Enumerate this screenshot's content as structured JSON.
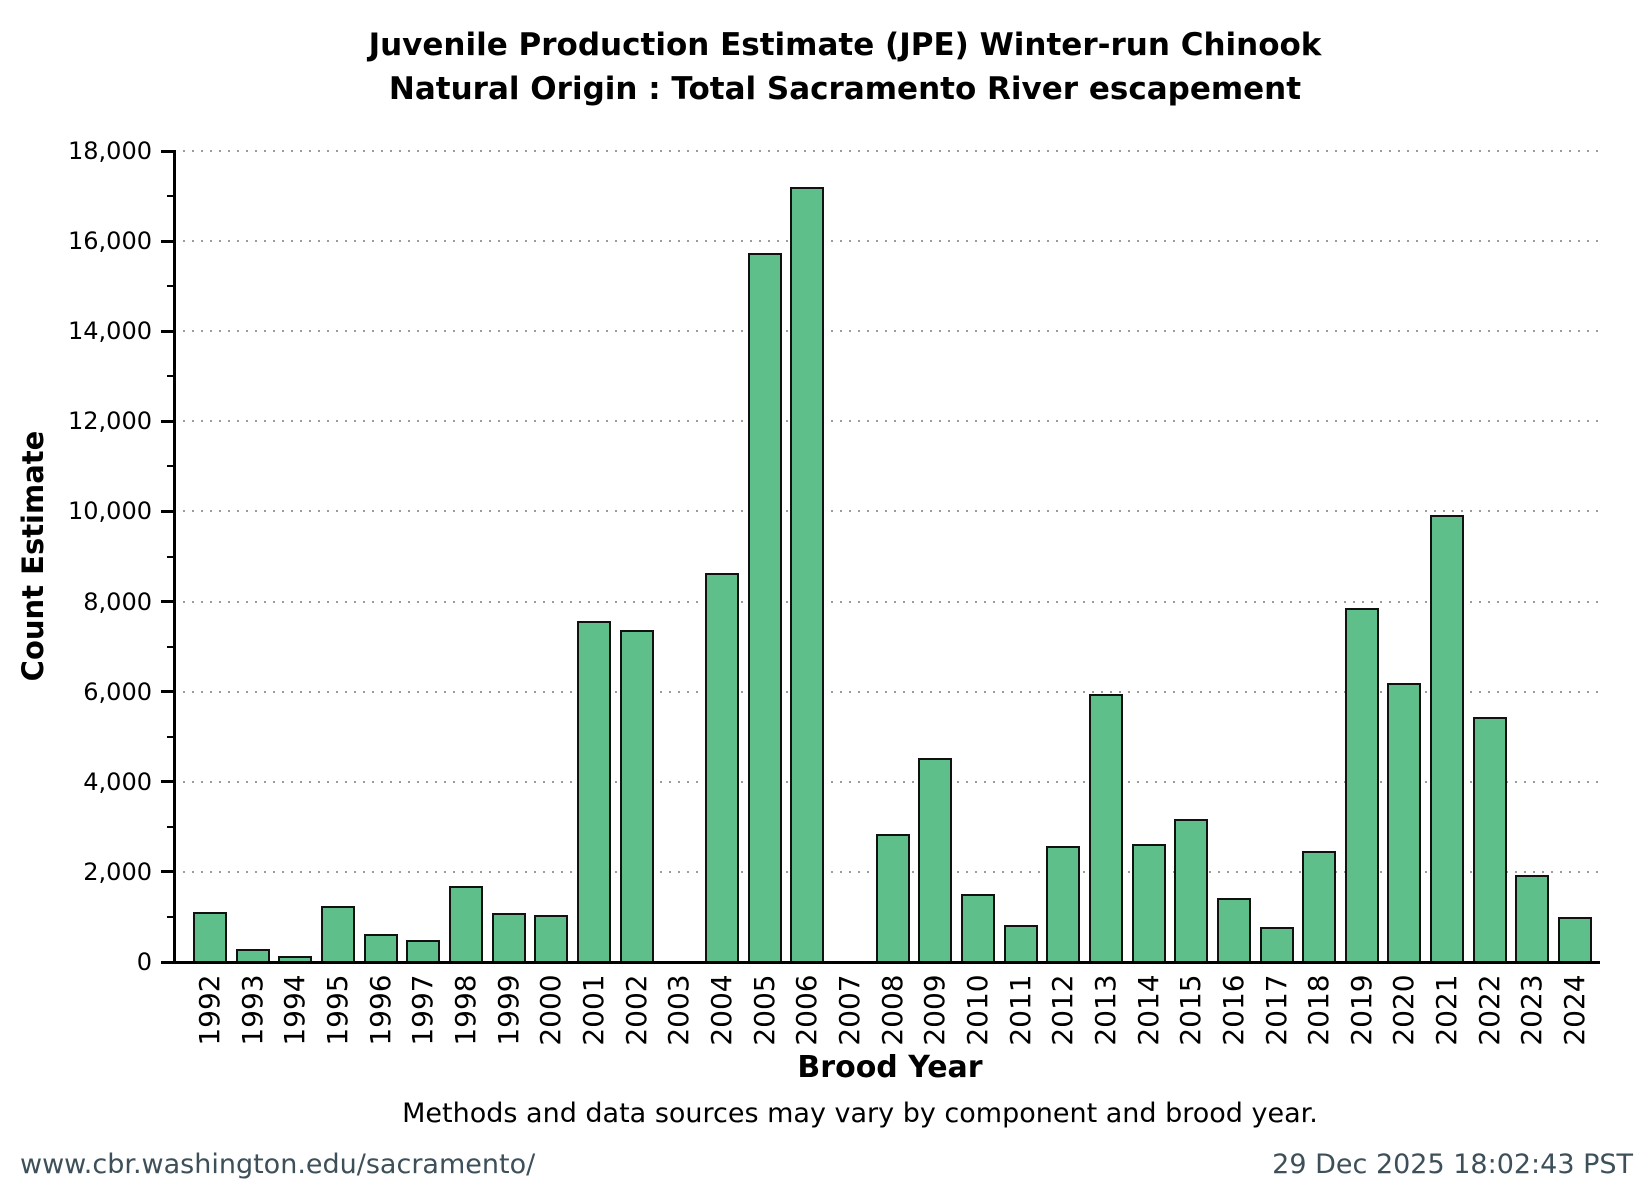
{
  "title": {
    "line1": "Juvenile Production Estimate (JPE) Winter-run Chinook",
    "line2": "Natural Origin : Total Sacramento River escapement"
  },
  "y_axis": {
    "label": "Count Estimate"
  },
  "x_axis": {
    "label": "Brood Year"
  },
  "footnote": "Methods and data sources may vary by component and brood year.",
  "footer": {
    "left": "www.cbr.washington.edu/sacramento/",
    "right": "29 Dec 2025 18:02:43 PST"
  },
  "colors": {
    "bar_fill": "#5fbf8b",
    "bar_edge": "#111111",
    "grid": "#9c9c9c",
    "footer_text": "#3d505a"
  },
  "chart_data": {
    "type": "bar",
    "title": "Juvenile Production Estimate (JPE) Winter-run Chinook — Natural Origin : Total Sacramento River escapement",
    "xlabel": "Brood Year",
    "ylabel": "Count Estimate",
    "ylim": [
      0,
      18000
    ],
    "ytick_step": 2000,
    "grid": "dotted horizontal at major ticks",
    "legend": "none",
    "categories": [
      1992,
      1993,
      1994,
      1995,
      1996,
      1997,
      1998,
      1999,
      2000,
      2001,
      2002,
      2003,
      2004,
      2005,
      2006,
      2007,
      2008,
      2009,
      2010,
      2011,
      2012,
      2013,
      2014,
      2015,
      2016,
      2017,
      2018,
      2019,
      2020,
      2021,
      2022,
      2023,
      2024
    ],
    "values": [
      1130,
      300,
      160,
      1270,
      640,
      500,
      1710,
      1110,
      1070,
      7600,
      7380,
      null,
      8650,
      15750,
      17220,
      null,
      2870,
      4560,
      1530,
      850,
      2600,
      5960,
      2650,
      3200,
      1450,
      810,
      2490,
      7870,
      6220,
      9950,
      5460,
      1950,
      1020
    ]
  }
}
